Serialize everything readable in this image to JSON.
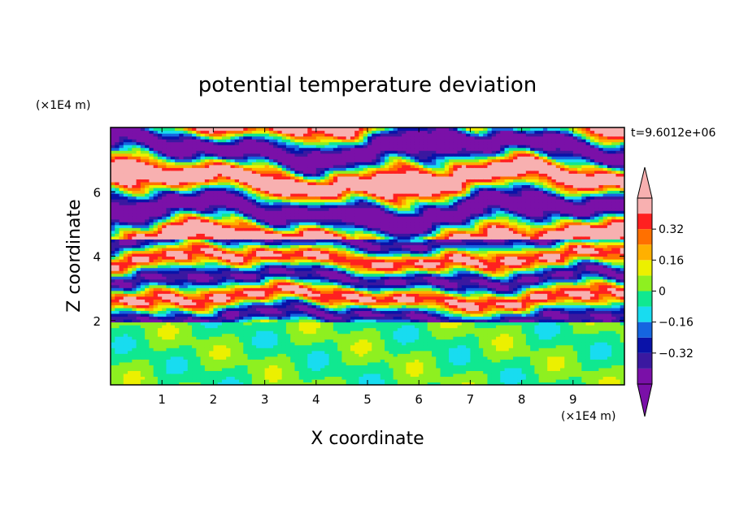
{
  "chart_data": {
    "type": "heatmap",
    "title": "potential temperature deviation",
    "xlabel": "X coordinate",
    "ylabel": "Z coordinate",
    "x_unit": "(×1E4 m)",
    "y_unit": "(×1E4 m)",
    "time_label": "t=9.6012e+06",
    "xlim": [
      0,
      10
    ],
    "ylim": [
      0,
      8
    ],
    "x_ticks": [
      "1",
      "2",
      "3",
      "4",
      "5",
      "6",
      "7",
      "8",
      "9"
    ],
    "y_ticks": [
      "2",
      "4",
      "6"
    ],
    "colorbar": {
      "levels": [
        -0.48,
        -0.4,
        -0.32,
        -0.24,
        -0.16,
        -0.08,
        0,
        0.08,
        0.16,
        0.24,
        0.32,
        0.4,
        0.48
      ],
      "tick_labels": [
        "0.32",
        "0.16",
        "0",
        "−0.16",
        "−0.32"
      ],
      "tick_values": [
        0.32,
        0.16,
        0,
        -0.16,
        -0.32
      ],
      "colors_low_to_high": [
        "#7a10a8",
        "#3a18a0",
        "#0a12a8",
        "#1565e0",
        "#18dcf0",
        "#10e890",
        "#8ef020",
        "#ecf000",
        "#ffb000",
        "#ff7000",
        "#ff2020",
        "#f8b0b0"
      ],
      "under_color": "#7a10a8",
      "over_color": "#f8b0b0"
    },
    "description_regions": [
      {
        "z_range": [
          0,
          2
        ],
        "pattern": "weak perturbations (mostly slightly negative / slightly positive)"
      },
      {
        "z_range": [
          2,
          4.5
        ],
        "pattern": "strongly layered small-scale alternating bands"
      },
      {
        "z_range": [
          4.5,
          8
        ],
        "pattern": "broad alternating strongly positive / strongly negative layers"
      }
    ]
  }
}
